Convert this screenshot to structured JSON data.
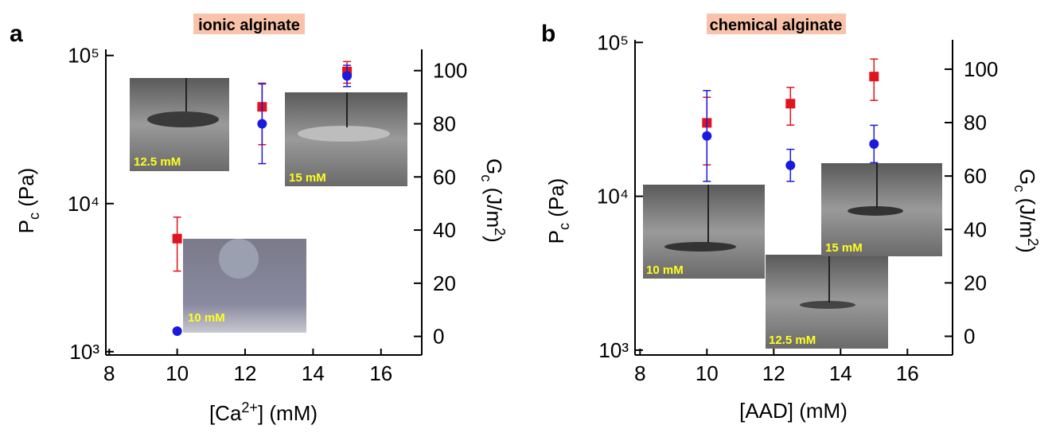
{
  "chart_data": [
    {
      "type": "scatter",
      "panel_label": "a",
      "title": "ionic alginate",
      "xlabel": [
        "[Ca",
        "2+",
        "] (mM)"
      ],
      "ylabel": [
        "P",
        "c",
        " (Pa)"
      ],
      "y2label": [
        "G",
        "c",
        " (J/m",
        "2",
        ")"
      ],
      "x": [
        10,
        12.5,
        15
      ],
      "series": [
        {
          "color": "#e0141e",
          "values": [
            5800,
            45000,
            78000
          ],
          "errors": [
            2300,
            20000,
            13000
          ]
        },
        {
          "color": "#1a1adc",
          "axis": "y2",
          "values": [
            2,
            80,
            98
          ],
          "errors": [
            0,
            15,
            4
          ]
        }
      ],
      "xlim": [
        7.9,
        17.2
      ],
      "xticks": [
        8,
        10,
        12,
        14,
        16
      ],
      "ylim": [
        950,
        110000
      ],
      "log_y": true,
      "yticks": [
        {
          "value": 1000,
          "label": "10³"
        },
        {
          "value": 10000,
          "label": "10⁴"
        },
        {
          "value": 100000,
          "label": "10⁵"
        }
      ],
      "y2lim": [
        -7,
        108
      ],
      "y2ticks": [
        0,
        20,
        40,
        60,
        80,
        100
      ],
      "annotations": [
        "12.5 mM",
        "15 mM",
        "10 mM"
      ]
    },
    {
      "type": "scatter",
      "panel_label": "b",
      "title": "chemical alginate",
      "xlabel": [
        "[AAD] (mM)"
      ],
      "ylabel": [
        "P",
        "c",
        " (Pa)"
      ],
      "y2label": [
        "G",
        "c",
        " (J/m",
        "2",
        ")"
      ],
      "x": [
        10,
        12.5,
        15
      ],
      "series": [
        {
          "color": "#e0141e",
          "values": [
            30000,
            40000,
            60000
          ],
          "errors": [
            14000,
            11000,
            18000
          ]
        },
        {
          "color": "#1a1adc",
          "axis": "y2",
          "values": [
            75,
            64,
            72
          ],
          "errors": [
            17,
            6,
            7
          ]
        }
      ],
      "xlim": [
        7.85,
        17.35
      ],
      "xticks": [
        8,
        10,
        12,
        14,
        16
      ],
      "ylim": [
        930,
        104000
      ],
      "log_y": true,
      "yticks": [
        {
          "value": 1000,
          "label": "10³"
        },
        {
          "value": 10000,
          "label": "10⁴"
        },
        {
          "value": 100000,
          "label": "10⁵"
        }
      ],
      "y2lim": [
        -7,
        111
      ],
      "y2ticks": [
        0,
        20,
        40,
        60,
        80,
        100
      ],
      "annotations": [
        "10 mM",
        "12.5 mM",
        "15 mM"
      ]
    }
  ]
}
